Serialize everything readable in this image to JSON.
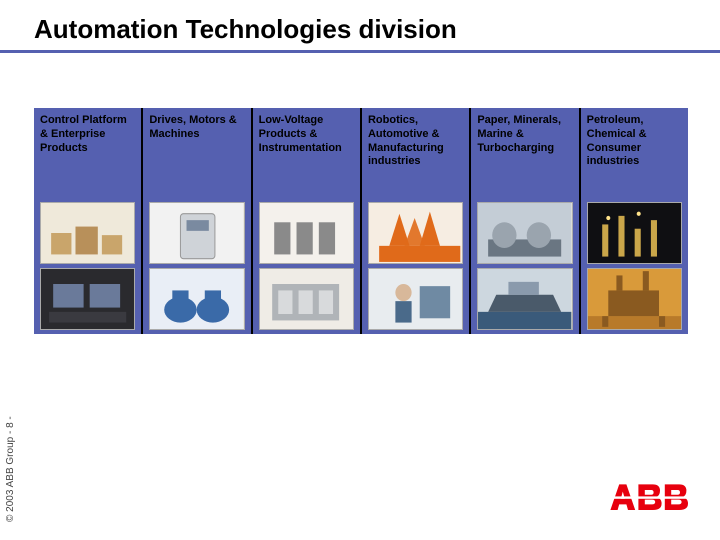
{
  "slide": {
    "title": "Automation Technologies division",
    "title_fontsize": 26,
    "title_color": "#000000",
    "underline_color": "#5560b0",
    "background_color": "#ffffff"
  },
  "panel": {
    "background_color": "#5560b0",
    "divider_color": "#000000",
    "label_fontsize": 11,
    "label_color": "#000000",
    "columns": [
      {
        "label": "Control Platform & Enterprise Products",
        "thumbs": [
          "boxes-tan",
          "workstation-dark"
        ]
      },
      {
        "label": "Drives, Motors & Machines",
        "thumbs": [
          "drive-unit",
          "blue-motors"
        ]
      },
      {
        "label": "Low-Voltage Products & Instrumentation",
        "thumbs": [
          "breakers",
          "switchgear"
        ]
      },
      {
        "label": "Robotics, Automotive & Manufacturing industries",
        "thumbs": [
          "orange-robots",
          "worker"
        ]
      },
      {
        "label": "Paper, Minerals, Marine & Turbocharging",
        "thumbs": [
          "paper-mill",
          "ship"
        ]
      },
      {
        "label": "Petroleum, Chemical & Consumer industries",
        "thumbs": [
          "night-plant",
          "offshore-rig"
        ]
      }
    ]
  },
  "footer": {
    "copyright": "© 2003 ABB Group - 8 -",
    "copyright_fontsize": 10,
    "logo_text": "ABB",
    "logo_color": "#e7000e"
  },
  "thumb_palette": {
    "boxes-tan": {
      "bg": "#efe9da",
      "shapes": "#c9a56b"
    },
    "workstation-dark": {
      "bg": "#2a2a2e",
      "shapes": "#6a7a9a"
    },
    "drive-unit": {
      "bg": "#f2f2f2",
      "shapes": "#cfd3d8"
    },
    "blue-motors": {
      "bg": "#e9eef6",
      "shapes": "#3a6aa8"
    },
    "breakers": {
      "bg": "#f4f1ec",
      "shapes": "#8a8a8a"
    },
    "switchgear": {
      "bg": "#efece6",
      "shapes": "#b0b4b8"
    },
    "orange-robots": {
      "bg": "#f6ede2",
      "shapes": "#e06a1a"
    },
    "worker": {
      "bg": "#e8ecef",
      "shapes": "#6f8aa3"
    },
    "paper-mill": {
      "bg": "#c4cdd6",
      "shapes": "#6a7682"
    },
    "ship": {
      "bg": "#cdd7df",
      "shapes": "#4a5a6a"
    },
    "night-plant": {
      "bg": "#0f0f12",
      "shapes": "#caa64a"
    },
    "offshore-rig": {
      "bg": "#d99a3a",
      "shapes": "#8a5a20"
    }
  }
}
